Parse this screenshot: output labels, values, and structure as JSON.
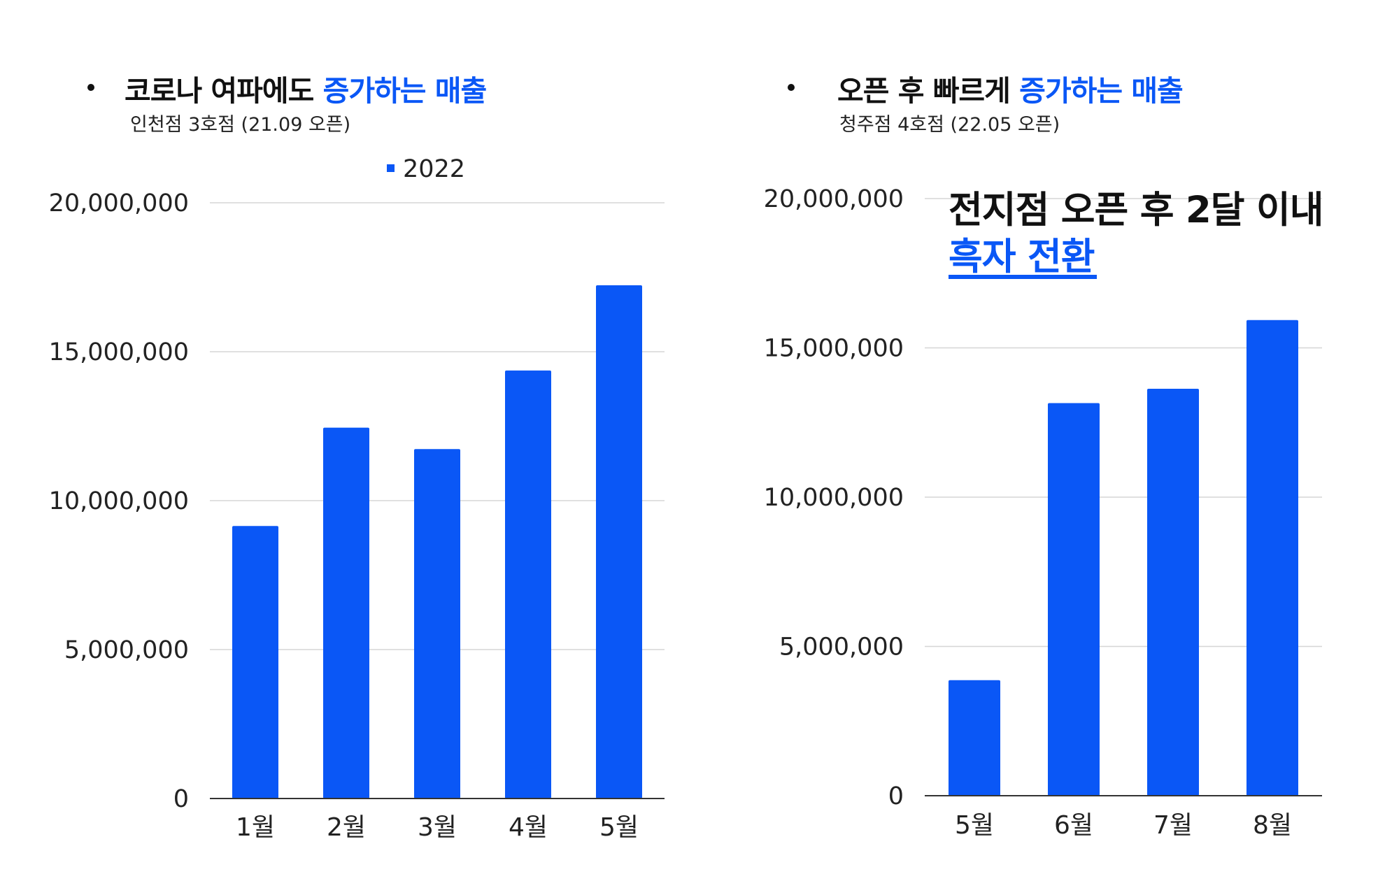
{
  "colors": {
    "bar": "#0a57f6",
    "accent": "#0a57f6",
    "grid": "#d6d6d6",
    "axis": "#333333"
  },
  "panels": [
    {
      "headline_plain": "코로나 여파에도 ",
      "headline_accent": "증가하는 매출",
      "subtitle": "인천점 3호점 (21.09 오픈)",
      "legend": "2022"
    },
    {
      "headline_plain": "오픈 후 빠르게 ",
      "headline_accent": "증가하는 매출",
      "subtitle": "청주점 4호점 (22.05 오픈)",
      "callout_line1": "전지점 오픈 후 2달 이내",
      "callout_line2": "흑자 전환"
    }
  ],
  "chart_data": [
    {
      "type": "bar",
      "categories": [
        "1월",
        "2월",
        "3월",
        "4월",
        "5월"
      ],
      "series": [
        {
          "name": "2022",
          "values": [
            9150000,
            12450000,
            11730000,
            14370000,
            17230000
          ]
        }
      ],
      "ylim": [
        0,
        20000000
      ],
      "yticks": [
        "0",
        "5,000,000",
        "10,000,000",
        "15,000,000",
        "20,000,000"
      ],
      "grid": true,
      "legend_position": "top"
    },
    {
      "type": "bar",
      "categories": [
        "5월",
        "6월",
        "7월",
        "8월"
      ],
      "series": [
        {
          "values": [
            3870000,
            13150000,
            13630000,
            15930000
          ]
        }
      ],
      "ylim": [
        0,
        20000000
      ],
      "yticks": [
        "0",
        "5,000,000",
        "10,000,000",
        "15,000,000",
        "20,000,000"
      ],
      "grid": true
    }
  ]
}
